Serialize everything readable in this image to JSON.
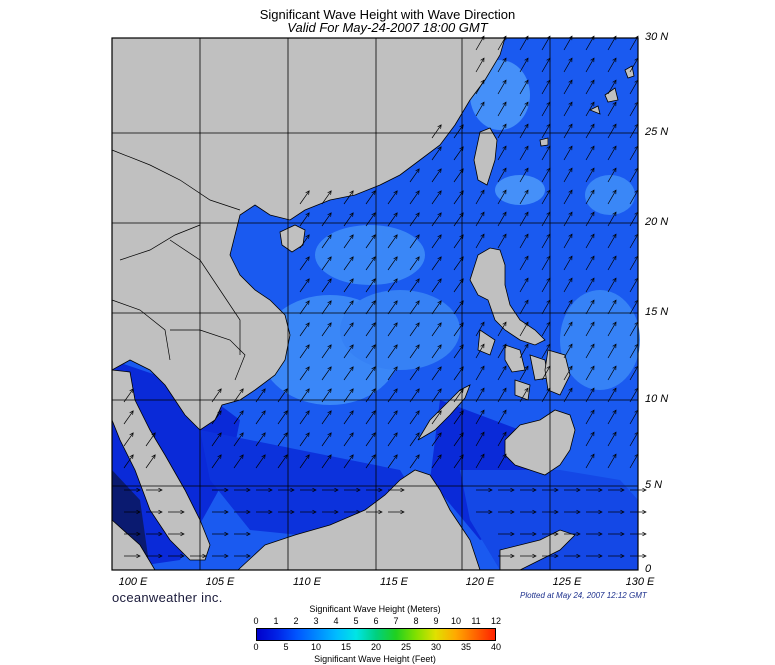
{
  "title": "Significant Wave Height with Wave Direction",
  "subtitle": "Valid For May-24-2007 18:00 GMT",
  "lat_labels": [
    "30 N",
    "25 N",
    "20 N",
    "15 N",
    "10 N",
    "5 N",
    "0"
  ],
  "lon_labels": [
    "100 E",
    "105 E",
    "110 E",
    "115 E",
    "120 E",
    "125 E",
    "130 E"
  ],
  "brand": "oceanweather inc.",
  "plotted_at": "Plotted at May 24, 2007 12:12 GMT",
  "legend": {
    "top_title": "Significant Wave Height (Meters)",
    "meters_ticks": [
      "0",
      "1",
      "2",
      "3",
      "4",
      "5",
      "6",
      "7",
      "8",
      "9",
      "10",
      "11",
      "12"
    ],
    "feet_ticks": [
      "0",
      "5",
      "10",
      "15",
      "20",
      "25",
      "30",
      "35",
      "40"
    ],
    "bottom_title": "Significant Wave Height (Feet)",
    "colors": [
      "#0000cc",
      "#0022e6",
      "#0055ff",
      "#0088ff",
      "#00bbff",
      "#00e5e5",
      "#00d080",
      "#20d020",
      "#80e000",
      "#e0e000",
      "#ffaa00",
      "#ff6600",
      "#ff2200"
    ]
  },
  "colors": {
    "land": "#c0c0c0",
    "sea_base": "#1a5af0",
    "sea_light": "#3e8cf8",
    "sea_dark": "#0a2ad8",
    "grid": "#000000"
  }
}
